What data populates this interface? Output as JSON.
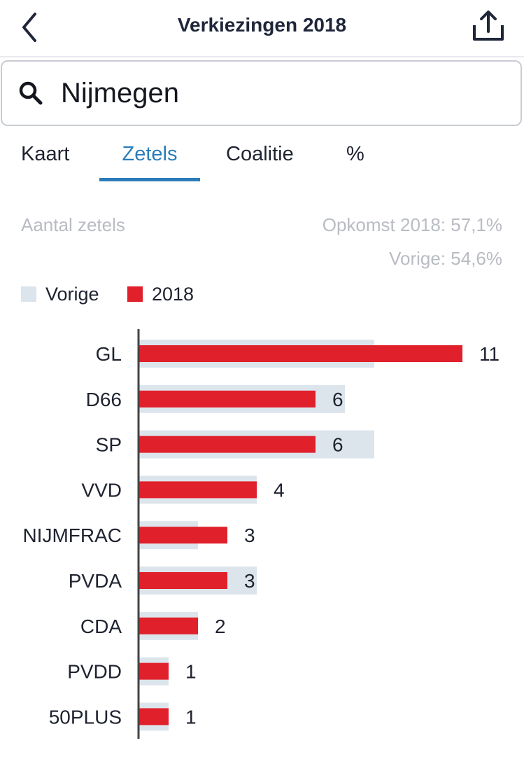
{
  "header": {
    "title": "Verkiezingen 2018",
    "back_icon": "chevron-left-icon",
    "share_icon": "share-icon"
  },
  "search": {
    "value": "Nijmegen",
    "icon": "search-icon"
  },
  "tabs": [
    {
      "label": "Kaart",
      "active": false
    },
    {
      "label": "Zetels",
      "active": true
    },
    {
      "label": "Coalitie",
      "active": false
    },
    {
      "label": "%",
      "active": false
    }
  ],
  "info": {
    "left_label": "Aantal zetels",
    "turnout": "Opkomst 2018: 57,1%",
    "previous": "Vorige: 54,6%"
  },
  "colors": {
    "accent": "#2b7cb8",
    "bar_2018": "#e0202b",
    "bar_previous": "#dde5ec",
    "muted_text": "#b9bcc3"
  },
  "chart_data": {
    "type": "bar",
    "orientation": "horizontal",
    "legend": [
      {
        "name": "Vorige",
        "color": "#dde5ec"
      },
      {
        "name": "2018",
        "color": "#e0202b"
      }
    ],
    "categories": [
      "GL",
      "D66",
      "SP",
      "VVD",
      "NIJMFRAC",
      "PVDA",
      "CDA",
      "PVDD",
      "50PLUS"
    ],
    "series": [
      {
        "name": "Vorige",
        "values": [
          8,
          7,
          8,
          4,
          2,
          4,
          2,
          1,
          1
        ]
      },
      {
        "name": "2018",
        "values": [
          11,
          6,
          6,
          4,
          3,
          3,
          2,
          1,
          1
        ]
      }
    ],
    "value_labels": [
      "11",
      "6",
      "6",
      "4",
      "3",
      "3",
      "2",
      "1",
      "1"
    ],
    "xlim": [
      0,
      11
    ]
  }
}
